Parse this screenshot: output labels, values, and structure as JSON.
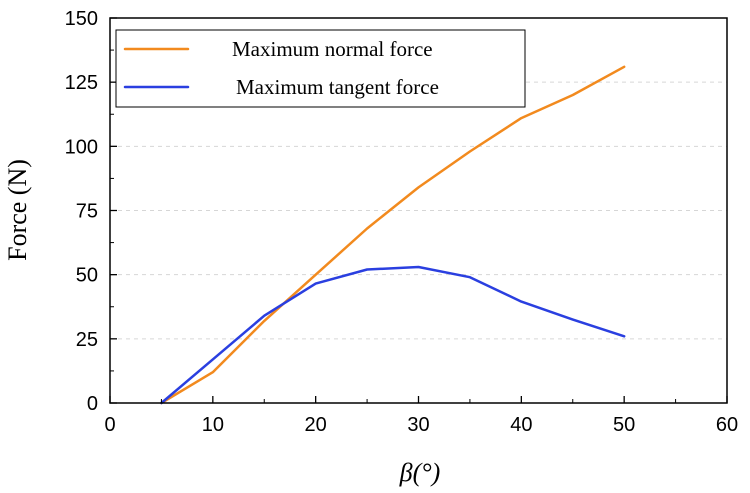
{
  "chart_data": {
    "type": "line",
    "title": "",
    "xlabel": "β(°)",
    "ylabel": "Force (N)",
    "xlim": [
      0,
      60
    ],
    "ylim": [
      0,
      150
    ],
    "xticks": [
      0,
      10,
      20,
      30,
      40,
      50,
      60
    ],
    "yticks": [
      0,
      25,
      50,
      75,
      100,
      125,
      150
    ],
    "grid": "horizontal dashed",
    "legend_position": "top-left",
    "series": [
      {
        "name": "Maximum normal force",
        "color": "#F28A1E",
        "x": [
          5,
          10,
          15,
          20,
          25,
          30,
          35,
          40,
          45,
          50
        ],
        "y": [
          0,
          12,
          32,
          50,
          68,
          84,
          98,
          111,
          120,
          131
        ]
      },
      {
        "name": "Maximum tangent force",
        "color": "#2A3FE0",
        "x": [
          5,
          10,
          15,
          20,
          25,
          30,
          35,
          40,
          45,
          50
        ],
        "y": [
          0,
          17,
          34,
          46.5,
          52,
          53,
          49,
          39.5,
          32.5,
          26
        ]
      }
    ]
  }
}
